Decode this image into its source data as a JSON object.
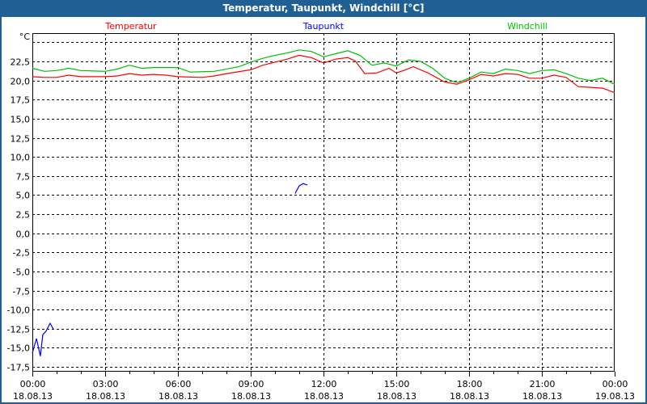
{
  "window": {
    "title": "Temperatur, Taupunkt, Windchill [°C]"
  },
  "chart_data": {
    "type": "line",
    "title": "Temperatur, Taupunkt, Windchill [°C]",
    "ylabel": "°C",
    "xlabel": "",
    "ylim": [
      -18.1,
      26.2
    ],
    "xlim_hours": [
      0,
      24
    ],
    "grid": true,
    "legend_placement": "top",
    "y_ticks": [
      25,
      22.5,
      20,
      17.5,
      15,
      12.5,
      10,
      7.5,
      5,
      2.5,
      0,
      -2.5,
      -5,
      -7.5,
      -10,
      -12.5,
      -15,
      -17.5
    ],
    "y_tick_labels": [
      "",
      "22,5",
      "20,0",
      "17,5",
      "15,0",
      "12,5",
      "10,0",
      "7,5",
      "5,0",
      "2,5",
      "0,0",
      "-2,5",
      "-5,0",
      "-7,5",
      "-10,0",
      "-12,5",
      "-15,0",
      "-17,5"
    ],
    "x_ticks": [
      {
        "hour": 0,
        "time": "00:00",
        "date": "18.08.13"
      },
      {
        "hour": 3,
        "time": "03:00",
        "date": "18.08.13"
      },
      {
        "hour": 6,
        "time": "06:00",
        "date": "18.08.13"
      },
      {
        "hour": 9,
        "time": "09:00",
        "date": "18.08.13"
      },
      {
        "hour": 12,
        "time": "12:00",
        "date": "18.08.13"
      },
      {
        "hour": 15,
        "time": "15:00",
        "date": "18.08.13"
      },
      {
        "hour": 18,
        "time": "18:00",
        "date": "18.08.13"
      },
      {
        "hour": 21,
        "time": "21:00",
        "date": "18.08.13"
      },
      {
        "hour": 24,
        "time": "00:00",
        "date": "19.08.13"
      }
    ],
    "series": [
      {
        "name": "Temperatur",
        "color": "#ff0000",
        "segments": [
          [
            [
              0,
              20.5
            ],
            [
              0.5,
              20.4
            ],
            [
              1,
              20.4
            ],
            [
              1.5,
              20.7
            ],
            [
              2,
              20.5
            ],
            [
              3,
              20.5
            ],
            [
              3.5,
              20.6
            ],
            [
              4,
              20.9
            ],
            [
              4.5,
              20.7
            ],
            [
              5,
              20.8
            ],
            [
              5.5,
              20.7
            ],
            [
              6,
              20.5
            ],
            [
              7,
              20.4
            ],
            [
              7.5,
              20.6
            ],
            [
              8,
              20.9
            ],
            [
              9,
              21.4
            ],
            [
              9.5,
              22.0
            ],
            [
              10,
              22.4
            ],
            [
              10.5,
              22.8
            ],
            [
              11,
              23.3
            ],
            [
              11.5,
              23.0
            ],
            [
              12,
              22.3
            ],
            [
              12.5,
              22.8
            ],
            [
              13,
              23.0
            ],
            [
              13.3,
              22.6
            ],
            [
              13.7,
              20.9
            ],
            [
              14.2,
              21.0
            ],
            [
              14.7,
              21.6
            ],
            [
              15,
              21.0
            ],
            [
              15.3,
              21.3
            ],
            [
              15.7,
              21.8
            ],
            [
              16.3,
              21.0
            ],
            [
              17,
              19.8
            ],
            [
              17.5,
              19.5
            ],
            [
              18,
              20.1
            ],
            [
              18.5,
              20.8
            ],
            [
              19,
              20.6
            ],
            [
              19.5,
              20.9
            ],
            [
              20,
              20.8
            ],
            [
              20.5,
              20.3
            ],
            [
              21,
              20.3
            ],
            [
              21.5,
              20.7
            ],
            [
              22,
              20.4
            ],
            [
              22.5,
              19.2
            ],
            [
              23,
              19.1
            ],
            [
              23.5,
              19.0
            ],
            [
              24,
              18.4
            ]
          ]
        ]
      },
      {
        "name": "Taupunkt",
        "color": "#0000ff",
        "segments": [
          [
            [
              0,
              -15.7
            ],
            [
              0.17,
              -13.8
            ],
            [
              0.33,
              -16.1
            ],
            [
              0.43,
              -13.3
            ],
            [
              0.57,
              -12.8
            ],
            [
              0.73,
              -11.8
            ],
            [
              0.87,
              -12.6
            ]
          ],
          [
            [
              10.83,
              5.2
            ],
            [
              11.0,
              6.2
            ],
            [
              11.17,
              6.5
            ],
            [
              11.33,
              6.3
            ]
          ]
        ]
      },
      {
        "name": "Windchill",
        "color": "#00c000",
        "segments": [
          [
            [
              0,
              21.6
            ],
            [
              0.5,
              21.2
            ],
            [
              1,
              21.3
            ],
            [
              1.5,
              21.6
            ],
            [
              2,
              21.3
            ],
            [
              3,
              21.2
            ],
            [
              3.5,
              21.5
            ],
            [
              4,
              22.0
            ],
            [
              4.5,
              21.6
            ],
            [
              5,
              21.7
            ],
            [
              6,
              21.7
            ],
            [
              6.5,
              21.1
            ],
            [
              7.5,
              21.2
            ],
            [
              8.5,
              21.8
            ],
            [
              9,
              22.4
            ],
            [
              9.5,
              22.9
            ],
            [
              10,
              23.3
            ],
            [
              10.5,
              23.6
            ],
            [
              11,
              24.0
            ],
            [
              11.5,
              23.8
            ],
            [
              12,
              23.1
            ],
            [
              12.5,
              23.5
            ],
            [
              13,
              23.9
            ],
            [
              13.5,
              23.3
            ],
            [
              14,
              22.0
            ],
            [
              14.5,
              22.3
            ],
            [
              15,
              21.9
            ],
            [
              15.5,
              22.7
            ],
            [
              16,
              22.5
            ],
            [
              16.5,
              21.6
            ],
            [
              17,
              20.3
            ],
            [
              17.5,
              19.7
            ],
            [
              18,
              20.3
            ],
            [
              18.5,
              21.1
            ],
            [
              19,
              20.9
            ],
            [
              19.5,
              21.5
            ],
            [
              20,
              21.3
            ],
            [
              20.5,
              20.9
            ],
            [
              21,
              21.3
            ],
            [
              21.5,
              21.4
            ],
            [
              22,
              20.9
            ],
            [
              22.5,
              20.3
            ],
            [
              23,
              20.0
            ],
            [
              23.5,
              20.3
            ],
            [
              24,
              19.5
            ]
          ]
        ]
      }
    ]
  }
}
